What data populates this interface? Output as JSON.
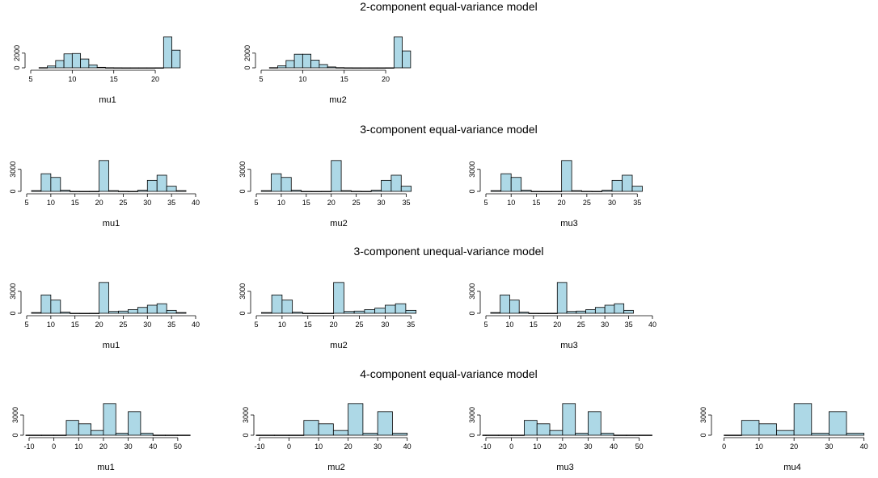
{
  "colors": {
    "bar_fill": "#add8e6",
    "bar_stroke": "#000000",
    "axis": "#000000"
  },
  "rows": [
    {
      "title": "2-component equal-variance model"
    },
    {
      "title": "3-component equal-variance model"
    },
    {
      "title": "3-component unequal-variance model"
    },
    {
      "title": "4-component equal-variance model"
    }
  ],
  "chart_data": [
    {
      "type": "bar",
      "model": "2-component equal-variance model",
      "xlabel": "mu1",
      "xlim": [
        5,
        23.5
      ],
      "ylim": [
        0,
        4400
      ],
      "x_ticks": [
        5,
        10,
        15,
        20
      ],
      "y_ticks": [
        0,
        2000
      ],
      "bin_edges": [
        6,
        7,
        8,
        9,
        10,
        11,
        12,
        13,
        14,
        15,
        16,
        17,
        18,
        19,
        20,
        21,
        22,
        23
      ],
      "counts": [
        30,
        250,
        1000,
        1900,
        1950,
        1200,
        400,
        70,
        20,
        10,
        5,
        5,
        5,
        5,
        10,
        4200,
        2400
      ]
    },
    {
      "type": "bar",
      "model": "2-component equal-variance model",
      "xlabel": "mu2",
      "xlim": [
        5,
        23.5
      ],
      "ylim": [
        0,
        4400
      ],
      "x_ticks": [
        5,
        10,
        15,
        20
      ],
      "y_ticks": [
        0,
        2000
      ],
      "bin_edges": [
        6,
        7,
        8,
        9,
        10,
        11,
        12,
        13,
        14,
        15,
        16,
        17,
        18,
        19,
        20,
        21,
        22,
        23
      ],
      "counts": [
        30,
        280,
        1000,
        1850,
        1850,
        1050,
        450,
        120,
        30,
        10,
        5,
        5,
        5,
        5,
        10,
        4200,
        2300
      ]
    },
    {
      "type": "bar",
      "model": "3-component equal-variance model",
      "xlabel": "mu1",
      "xlim": [
        5,
        40
      ],
      "ylim": [
        0,
        4400
      ],
      "x_ticks": [
        5,
        10,
        15,
        20,
        25,
        30,
        35,
        40
      ],
      "y_ticks": [
        0,
        3000
      ],
      "bin_edges": [
        6,
        8,
        10,
        12,
        14,
        16,
        18,
        20,
        22,
        24,
        26,
        28,
        30,
        32,
        34,
        36,
        38
      ],
      "counts": [
        100,
        2400,
        1900,
        150,
        10,
        5,
        10,
        4200,
        100,
        20,
        10,
        150,
        1500,
        2200,
        700,
        100
      ]
    },
    {
      "type": "bar",
      "model": "3-component equal-variance model",
      "xlabel": "mu2",
      "xlim": [
        5,
        38
      ],
      "ylim": [
        0,
        4400
      ],
      "x_ticks": [
        5,
        10,
        15,
        20,
        25,
        30,
        35
      ],
      "y_ticks": [
        0,
        3000
      ],
      "bin_edges": [
        6,
        8,
        10,
        12,
        14,
        16,
        18,
        20,
        22,
        24,
        26,
        28,
        30,
        32,
        34,
        36
      ],
      "counts": [
        100,
        2400,
        1900,
        150,
        10,
        5,
        10,
        4200,
        100,
        20,
        10,
        150,
        1500,
        2200,
        700
      ]
    },
    {
      "type": "bar",
      "model": "3-component equal-variance model",
      "xlabel": "mu3",
      "xlim": [
        5,
        38
      ],
      "ylim": [
        0,
        4400
      ],
      "x_ticks": [
        5,
        10,
        15,
        20,
        25,
        30,
        35
      ],
      "y_ticks": [
        0,
        3000
      ],
      "bin_edges": [
        6,
        8,
        10,
        12,
        14,
        16,
        18,
        20,
        22,
        24,
        26,
        28,
        30,
        32,
        34,
        36
      ],
      "counts": [
        100,
        2400,
        1900,
        150,
        10,
        5,
        10,
        4200,
        100,
        20,
        10,
        150,
        1500,
        2200,
        700
      ]
    },
    {
      "type": "bar",
      "model": "3-component unequal-variance model",
      "xlabel": "mu1",
      "xlim": [
        5,
        40
      ],
      "ylim": [
        0,
        4400
      ],
      "x_ticks": [
        5,
        10,
        15,
        20,
        25,
        30,
        35,
        40
      ],
      "y_ticks": [
        0,
        3000
      ],
      "bin_edges": [
        6,
        8,
        10,
        12,
        14,
        16,
        18,
        20,
        22,
        24,
        26,
        28,
        30,
        32,
        34,
        36,
        38
      ],
      "counts": [
        100,
        2500,
        1800,
        150,
        10,
        5,
        10,
        4200,
        250,
        300,
        500,
        800,
        1100,
        1300,
        400,
        100
      ]
    },
    {
      "type": "bar",
      "model": "3-component unequal-variance model",
      "xlabel": "mu2",
      "xlim": [
        5,
        37
      ],
      "ylim": [
        0,
        4400
      ],
      "x_ticks": [
        5,
        10,
        15,
        20,
        25,
        30,
        35
      ],
      "y_ticks": [
        0,
        3000
      ],
      "bin_edges": [
        6,
        8,
        10,
        12,
        14,
        16,
        18,
        20,
        22,
        24,
        26,
        28,
        30,
        32,
        34,
        36
      ],
      "counts": [
        100,
        2500,
        1800,
        150,
        10,
        5,
        10,
        4200,
        250,
        300,
        500,
        700,
        1100,
        1300,
        400
      ]
    },
    {
      "type": "bar",
      "model": "3-component unequal-variance model",
      "xlabel": "mu3",
      "xlim": [
        5,
        40
      ],
      "ylim": [
        0,
        4400
      ],
      "x_ticks": [
        5,
        10,
        15,
        20,
        25,
        30,
        35,
        40
      ],
      "y_ticks": [
        0,
        3000
      ],
      "bin_edges": [
        6,
        8,
        10,
        12,
        14,
        16,
        18,
        20,
        22,
        24,
        26,
        28,
        30,
        32,
        34,
        36
      ],
      "counts": [
        100,
        2500,
        1800,
        150,
        10,
        5,
        10,
        4200,
        250,
        300,
        500,
        800,
        1100,
        1300,
        400
      ]
    },
    {
      "type": "bar",
      "model": "4-component equal-variance model",
      "xlabel": "mu1",
      "xlim": [
        -10,
        52
      ],
      "ylim": [
        0,
        4800
      ],
      "x_ticks": [
        -10,
        0,
        10,
        20,
        30,
        40,
        50
      ],
      "y_ticks": [
        0,
        3000
      ],
      "bin_edges": [
        -15,
        -10,
        -5,
        0,
        5,
        10,
        15,
        20,
        25,
        30,
        35,
        40,
        45,
        50,
        55
      ],
      "counts": [
        20,
        20,
        20,
        20,
        2200,
        1700,
        700,
        4700,
        300,
        3500,
        300,
        20,
        20,
        20
      ]
    },
    {
      "type": "bar",
      "model": "4-component equal-variance model",
      "xlabel": "mu2",
      "xlim": [
        -10,
        42
      ],
      "ylim": [
        0,
        4800
      ],
      "x_ticks": [
        -10,
        0,
        10,
        20,
        30,
        40
      ],
      "y_ticks": [
        0,
        3000
      ],
      "bin_edges": [
        -15,
        -10,
        -5,
        0,
        5,
        10,
        15,
        20,
        25,
        30,
        35,
        40
      ],
      "counts": [
        20,
        20,
        20,
        20,
        2200,
        1700,
        700,
        4700,
        300,
        3500,
        300
      ]
    },
    {
      "type": "bar",
      "model": "4-component equal-variance model",
      "xlabel": "mu3",
      "xlim": [
        -10,
        52
      ],
      "ylim": [
        0,
        4800
      ],
      "x_ticks": [
        -10,
        0,
        10,
        20,
        30,
        40,
        50
      ],
      "y_ticks": [
        0,
        3000
      ],
      "bin_edges": [
        -15,
        -10,
        -5,
        0,
        5,
        10,
        15,
        20,
        25,
        30,
        35,
        40,
        45,
        50,
        55
      ],
      "counts": [
        20,
        20,
        20,
        20,
        2200,
        1700,
        700,
        4700,
        300,
        3500,
        300,
        20,
        20,
        20
      ]
    },
    {
      "type": "bar",
      "model": "4-component equal-variance model",
      "xlabel": "mu4",
      "xlim": [
        -2,
        41
      ],
      "ylim": [
        0,
        4800
      ],
      "x_ticks": [
        0,
        10,
        20,
        30,
        40
      ],
      "y_ticks": [
        0,
        3000
      ],
      "bin_edges": [
        0,
        5,
        10,
        15,
        20,
        25,
        30,
        35,
        40
      ],
      "counts": [
        20,
        2200,
        1700,
        700,
        4700,
        300,
        3500,
        300
      ]
    }
  ]
}
